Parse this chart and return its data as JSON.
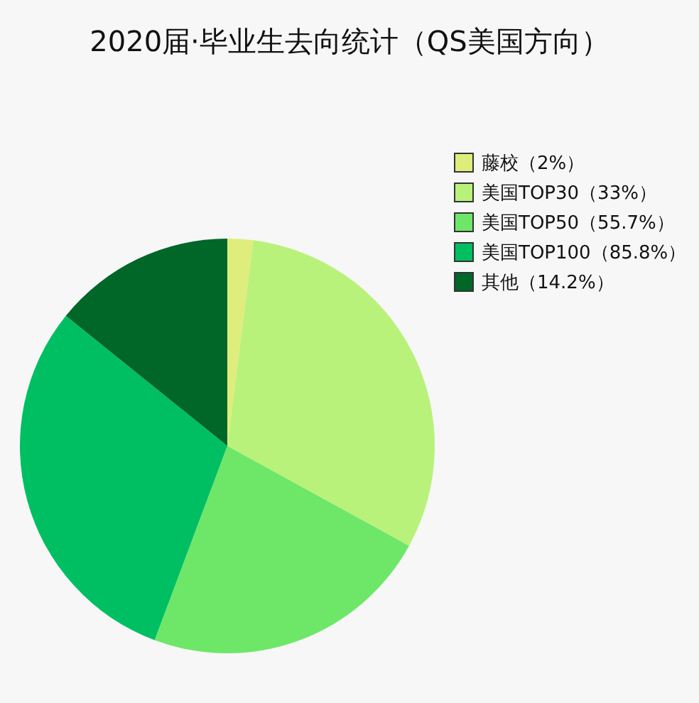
{
  "chart_data": {
    "type": "pie",
    "title": "2020届·毕业生去向统计（QS美国方向）",
    "categories": [
      "藤校（2%）",
      "美国TOP30（33%）",
      "美国TOP50（55.7%）",
      "美国TOP100（85.8%）",
      "其他（14.2%）"
    ],
    "values": [
      2,
      31,
      22.7,
      30.1,
      14.2
    ],
    "colors": [
      "#dfed7d",
      "#b9f27a",
      "#6ee769",
      "#00bf62",
      "#006729"
    ],
    "legend": "top right"
  }
}
